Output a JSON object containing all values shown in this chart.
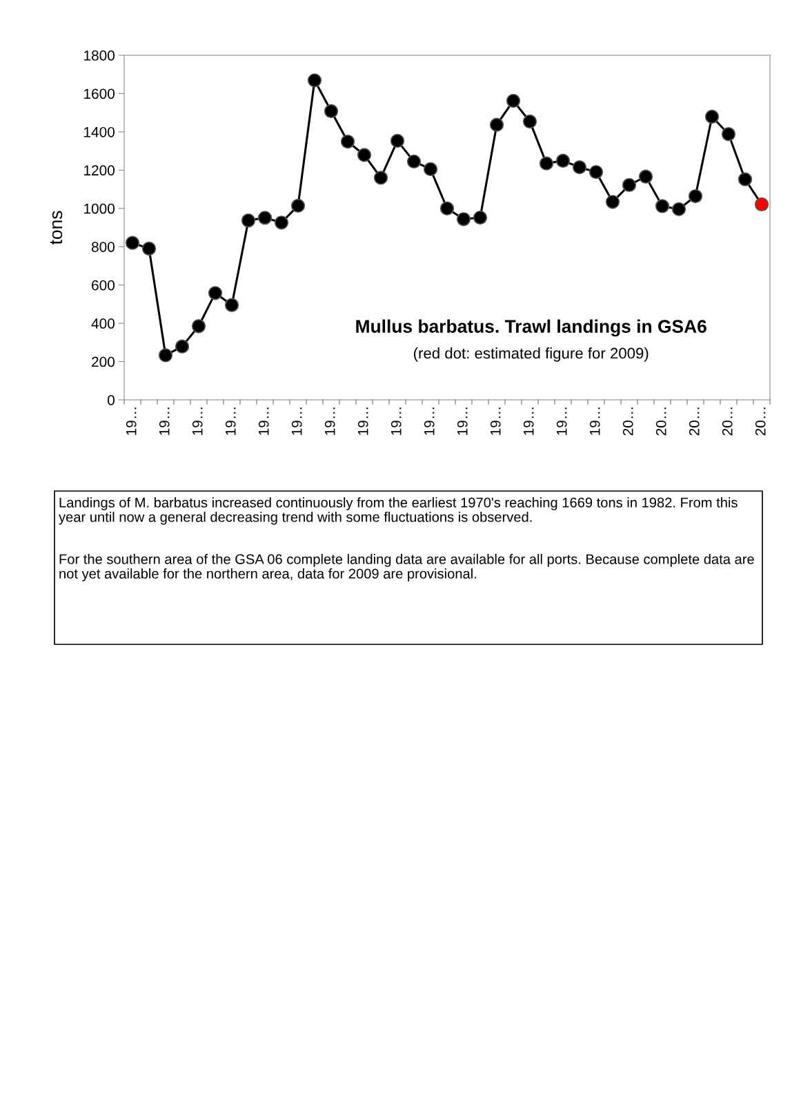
{
  "chart_data": {
    "type": "line",
    "title": "Mullus barbatus. Trawl landings in GSA6",
    "subtitle": "(red dot: estimated figure for 2009)",
    "ylabel": "tons",
    "categories": [
      "19…",
      null,
      "19…",
      null,
      "19…",
      null,
      "19…",
      null,
      "19…",
      null,
      "19…",
      null,
      "19…",
      null,
      "19…",
      null,
      "19…",
      null,
      "19…",
      null,
      "19…",
      null,
      "19…",
      null,
      "19…",
      null,
      "19…",
      null,
      "19…",
      null,
      "20…",
      null,
      "20…",
      null,
      "20…",
      null,
      "20…",
      null,
      "20…"
    ],
    "series": [
      {
        "color": "#000000",
        "values": [
          820,
          790,
          233,
          279,
          385,
          558,
          495,
          937,
          951,
          926,
          1014,
          1669,
          1508,
          1349,
          1279,
          1160,
          1353,
          1245,
          1205,
          1000,
          944,
          952,
          1437,
          1562,
          1454,
          1235,
          1249,
          1215,
          1190,
          1034,
          1122,
          1166,
          1012,
          996,
          1064,
          1479,
          1388,
          1152,
          1021
        ],
        "colors": [
          "#000000",
          "#000000",
          "#000000",
          "#000000",
          "#000000",
          "#000000",
          "#000000",
          "#000000",
          "#000000",
          "#000000",
          "#000000",
          "#000000",
          "#000000",
          "#000000",
          "#000000",
          "#000000",
          "#000000",
          "#000000",
          "#000000",
          "#000000",
          "#000000",
          "#000000",
          "#000000",
          "#000000",
          "#000000",
          "#000000",
          "#000000",
          "#000000",
          "#000000",
          "#000000",
          "#000000",
          "#000000",
          "#000000",
          "#000000",
          "#000000",
          "#000000",
          "#000000",
          "#000000",
          "#ff0000"
        ]
      }
    ],
    "ylim": [
      0,
      1800
    ],
    "yticks": [
      0,
      200,
      400,
      600,
      800,
      1000,
      1200,
      1400,
      1600,
      1800
    ],
    "grid": false,
    "legend": false,
    "marker": "circle",
    "line_style": "solid",
    "annotations": [
      "Landings of M. barbatus increased continuously from the earliest 1970's reaching 1669 tons in 1982. From this year until now a general decreasing trend with some fluctuations is observed.",
      "For the southern area of the GSA 06 complete landing data are available for all ports. Because complete data are not yet available for the northern area, data for 2009 are provisional."
    ]
  }
}
